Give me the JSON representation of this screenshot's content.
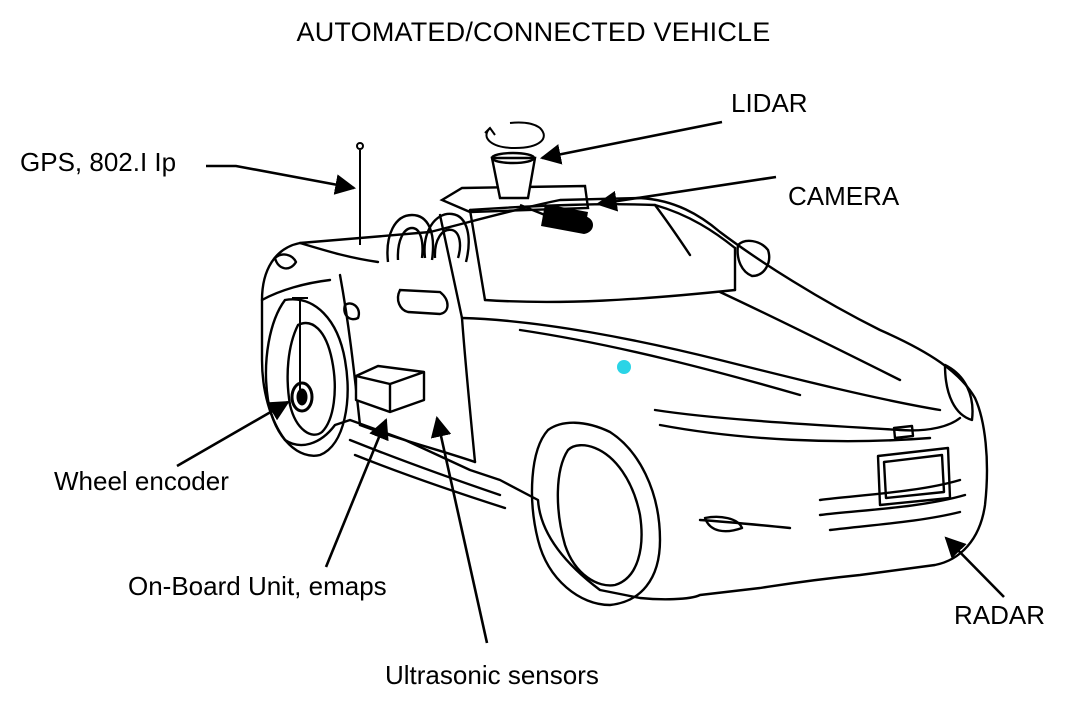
{
  "title": "AUTOMATED/CONNECTED VEHICLE",
  "labels": {
    "gps": "GPS, 802.I Ip",
    "lidar": "LIDAR",
    "camera": "CAMERA",
    "wheel_encoder": "Wheel encoder",
    "onboard_unit": "On-Board Unit, emaps",
    "ultrasonic": "Ultrasonic sensors",
    "radar": "RADAR"
  },
  "colors": {
    "ink": "#000000",
    "background": "#ffffff",
    "marker": "#2ad4e6"
  }
}
